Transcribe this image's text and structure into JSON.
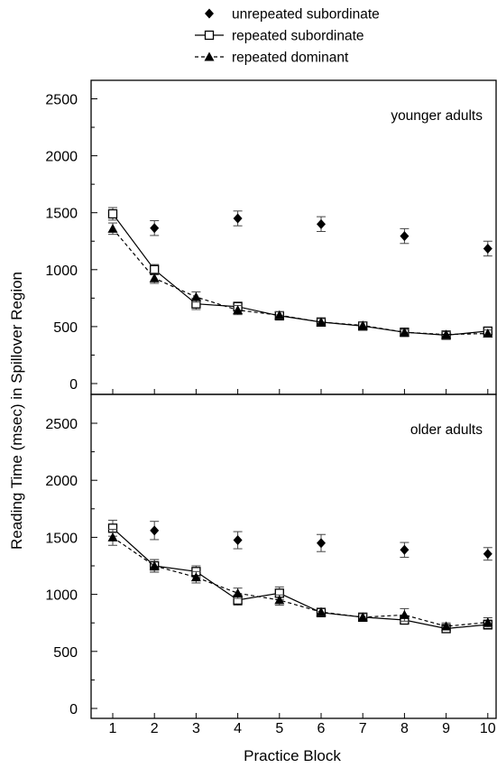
{
  "chart_data": {
    "type": "line",
    "xlabel": "Practice Block",
    "ylabel": "Reading Time (msec) in Spillover Region",
    "x": [
      1,
      2,
      3,
      4,
      5,
      6,
      7,
      8,
      9,
      10
    ],
    "ylim": [
      0,
      2750
    ],
    "yticks": [
      0,
      500,
      1000,
      1500,
      2000,
      2500
    ],
    "legend": {
      "placement": "top-center",
      "entries": [
        {
          "label": "unrepeated subordinate",
          "marker": "diamond",
          "line": "none"
        },
        {
          "label": "repeated subordinate",
          "marker": "open-square",
          "line": "solid"
        },
        {
          "label": "repeated dominant",
          "marker": "triangle",
          "line": "dashed"
        }
      ]
    },
    "panels": [
      {
        "label": "younger adults",
        "series": [
          {
            "name": "unrepeated subordinate",
            "x": [
              2,
              4,
              6,
              8,
              10
            ],
            "values": [
              1365,
              1450,
              1400,
              1295,
              1185
            ],
            "error": [
              65,
              65,
              65,
              65,
              65
            ]
          },
          {
            "name": "repeated subordinate",
            "x": [
              1,
              2,
              3,
              4,
              5,
              6,
              7,
              8,
              9,
              10
            ],
            "values": [
              1490,
              1000,
              700,
              675,
              595,
              540,
              505,
              450,
              425,
              460
            ],
            "error": [
              55,
              45,
              50,
              40,
              30,
              30,
              30,
              25,
              25,
              30
            ]
          },
          {
            "name": "repeated dominant",
            "x": [
              1,
              2,
              3,
              4,
              5,
              6,
              7,
              8,
              9,
              10
            ],
            "values": [
              1360,
              925,
              760,
              645,
              600,
              540,
              510,
              450,
              430,
              440
            ],
            "error": [
              50,
              45,
              45,
              40,
              30,
              30,
              30,
              25,
              25,
              30
            ]
          }
        ]
      },
      {
        "label": "older adults",
        "series": [
          {
            "name": "unrepeated subordinate",
            "x": [
              2,
              4,
              6,
              8,
              10
            ],
            "values": [
              1560,
              1475,
              1450,
              1390,
              1355
            ],
            "error": [
              80,
              75,
              75,
              65,
              55
            ]
          },
          {
            "name": "repeated subordinate",
            "x": [
              1,
              2,
              3,
              4,
              5,
              6,
              7,
              8,
              9,
              10
            ],
            "values": [
              1580,
              1250,
              1200,
              950,
              1010,
              840,
              800,
              775,
              700,
              735
            ],
            "error": [
              70,
              55,
              50,
              45,
              55,
              35,
              30,
              30,
              30,
              40
            ]
          },
          {
            "name": "repeated dominant",
            "x": [
              1,
              2,
              3,
              4,
              5,
              6,
              7,
              8,
              9,
              10
            ],
            "values": [
              1500,
              1250,
              1150,
              1010,
              950,
              845,
              800,
              820,
              720,
              755
            ],
            "error": [
              70,
              55,
              50,
              45,
              45,
              35,
              30,
              55,
              30,
              40
            ]
          }
        ]
      }
    ],
    "colors": {
      "marker": "#000000",
      "line": "#000000",
      "frame": "#000000"
    }
  }
}
